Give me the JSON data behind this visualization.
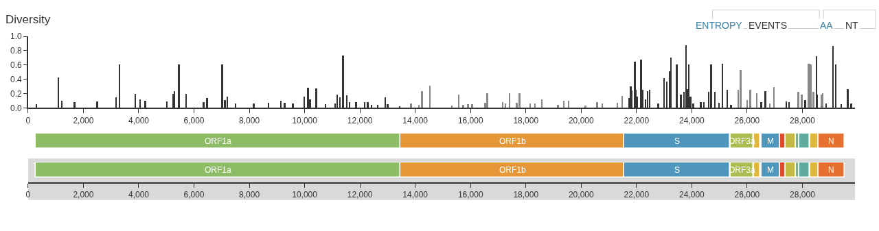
{
  "chart_data": [
    {
      "type": "bar",
      "title": "Diversity",
      "annotations": [
        "ENTROPY",
        "EVENTS",
        "AA",
        "NT"
      ],
      "x": [
        297,
        1097,
        1230,
        1683,
        2500,
        3185,
        3317,
        3878,
        4052,
        4240,
        5025,
        5248,
        5297,
        5454,
        5710,
        6353,
        6477,
        7022,
        7121,
        7203,
        7500,
        8160,
        8696,
        9142,
        9282,
        9579,
        9983,
        10124,
        10198,
        10421,
        10760,
        11106,
        11188,
        11287,
        11394,
        11526,
        11625,
        11864,
        12178,
        12285,
        12426,
        12649,
        12913,
        13003,
        13441,
        13853,
        14134,
        14250,
        14530,
        15330,
        15577,
        15735,
        15908,
        16064,
        16535,
        16609,
        17161,
        17260,
        17409,
        17673,
        17772,
        18160,
        18334,
        18581,
        19166,
        19381,
        19554,
        20156,
        20577,
        20760,
        21312,
        21485,
        21750,
        21799,
        21832,
        21948,
        21980,
        22030,
        22171,
        22220,
        22327,
        22401,
        22483,
        22790,
        22995,
        23102,
        23201,
        23250,
        23458,
        23606,
        23721,
        23795,
        23845,
        23903,
        23960,
        24059,
        24332,
        24447,
        24612,
        24703,
        24844,
        24983,
        25116,
        25290,
        25421,
        25676,
        25767,
        25998,
        26114,
        26361,
        26517,
        26666,
        26824,
        26980,
        27418,
        27525,
        27854,
        27978,
        28102,
        28210,
        28267,
        28324,
        28399,
        28507,
        28547,
        28680,
        28737,
        28861,
        29109,
        29208,
        29406,
        29646,
        29769
      ],
      "values": [
        0.05,
        0.43,
        0.1,
        0.08,
        0.09,
        0.15,
        0.61,
        0.2,
        0.12,
        0.1,
        0.09,
        0.2,
        0.23,
        0.61,
        0.2,
        0.08,
        0.14,
        0.61,
        0.11,
        0.16,
        0.06,
        0.06,
        0.07,
        0.1,
        0.07,
        0.06,
        0.16,
        0.28,
        0.12,
        0.27,
        0.05,
        0.06,
        0.19,
        0.15,
        0.73,
        0.18,
        0.08,
        0.08,
        0.08,
        0.08,
        0.04,
        0.04,
        0.15,
        0.05,
        0.02,
        0.06,
        0.04,
        0.23,
        0.31,
        0.03,
        0.19,
        0.04,
        0.05,
        0.05,
        0.07,
        0.21,
        0.08,
        0.06,
        0.21,
        0.07,
        0.21,
        0.06,
        0.06,
        0.12,
        0.04,
        0.1,
        0.1,
        0.03,
        0.08,
        0.06,
        0.07,
        0.17,
        0.14,
        0.3,
        0.24,
        0.65,
        0.25,
        0.16,
        0.67,
        0.25,
        0.12,
        0.23,
        0.25,
        0.06,
        0.42,
        0.37,
        0.51,
        0.7,
        0.61,
        0.19,
        0.22,
        0.88,
        0.26,
        0.61,
        0.16,
        0.06,
        0.08,
        0.08,
        0.22,
        0.61,
        0.22,
        0.07,
        0.62,
        0.25,
        0.04,
        0.25,
        0.53,
        0.11,
        0.25,
        0.21,
        0.08,
        0.23,
        0.06,
        0.29,
        0.09,
        0.08,
        0.22,
        0.19,
        0.11,
        0.62,
        0.62,
        0.61,
        0.22,
        0.72,
        0.19,
        0.19,
        0.21,
        0.06,
        0.87,
        0.61,
        0.05,
        0.26,
        0.06
      ],
      "colors": [
        "#333333",
        "#333333",
        "#333333",
        "#333333",
        "#333333",
        "#333333",
        "#333333",
        "#333333",
        "#333333",
        "#333333",
        "#333333",
        "#333333",
        "#333333",
        "#333333",
        "#333333",
        "#333333",
        "#333333",
        "#333333",
        "#333333",
        "#333333",
        "#333333",
        "#333333",
        "#333333",
        "#333333",
        "#333333",
        "#333333",
        "#333333",
        "#333333",
        "#333333",
        "#333333",
        "#333333",
        "#333333",
        "#333333",
        "#333333",
        "#333333",
        "#333333",
        "#333333",
        "#333333",
        "#333333",
        "#333333",
        "#333333",
        "#333333",
        "#333333",
        "#333333",
        "#333333",
        "#888888",
        "#888888",
        "#888888",
        "#888888",
        "#888888",
        "#888888",
        "#888888",
        "#888888",
        "#888888",
        "#888888",
        "#888888",
        "#888888",
        "#888888",
        "#888888",
        "#888888",
        "#888888",
        "#888888",
        "#888888",
        "#888888",
        "#888888",
        "#888888",
        "#888888",
        "#888888",
        "#888888",
        "#888888",
        "#888888",
        "#888888",
        "#333333",
        "#333333",
        "#333333",
        "#333333",
        "#333333",
        "#333333",
        "#333333",
        "#333333",
        "#333333",
        "#333333",
        "#333333",
        "#333333",
        "#333333",
        "#333333",
        "#333333",
        "#333333",
        "#333333",
        "#333333",
        "#333333",
        "#333333",
        "#333333",
        "#333333",
        "#333333",
        "#333333",
        "#333333",
        "#333333",
        "#333333",
        "#333333",
        "#333333",
        "#333333",
        "#333333",
        "#333333",
        "#333333",
        "#888888",
        "#888888",
        "#888888",
        "#888888",
        "#888888",
        "#333333",
        "#333333",
        "#888888",
        "#888888",
        "#333333",
        "#333333",
        "#888888",
        "#888888",
        "#333333",
        "#888888",
        "#888888",
        "#888888",
        "#888888",
        "#333333",
        "#333333",
        "#888888",
        "#888888",
        "#333333",
        "#333333",
        "#333333",
        "#333333",
        "#333333",
        "#333333"
      ],
      "xlim": [
        0,
        29903
      ],
      "xticks": [
        {
          "value": 0,
          "label": "0"
        },
        {
          "value": 2000,
          "label": "2,000"
        },
        {
          "value": 4000,
          "label": "4,000"
        },
        {
          "value": 6000,
          "label": "6,000"
        },
        {
          "value": 8000,
          "label": "8,000"
        },
        {
          "value": 10000,
          "label": "10,000"
        },
        {
          "value": 12000,
          "label": "12,000"
        },
        {
          "value": 14000,
          "label": "14,000"
        },
        {
          "value": 16000,
          "label": "16,000"
        },
        {
          "value": 18000,
          "label": "18,000"
        },
        {
          "value": 20000,
          "label": "20,000"
        },
        {
          "value": 22000,
          "label": "22,000"
        },
        {
          "value": 24000,
          "label": "24,000"
        },
        {
          "value": 26000,
          "label": "26,000"
        },
        {
          "value": 28000,
          "label": "28,000"
        }
      ],
      "ylim": [
        0,
        1
      ],
      "yticks": [
        {
          "value": 0,
          "label": "0.0"
        },
        {
          "value": 0.2,
          "label": "0.2"
        },
        {
          "value": 0.4,
          "label": "0.4"
        },
        {
          "value": 0.6,
          "label": "0.6"
        },
        {
          "value": 0.8,
          "label": "0.8"
        },
        {
          "value": 1,
          "label": "1.0"
        }
      ],
      "grid": false
    },
    {
      "type": "bar",
      "orientation": "horizontal",
      "categories": [
        null
      ],
      "xlim": [
        0,
        29903
      ],
      "tick_labels": false,
      "grid": false,
      "series": [
        {
          "color": "#8ebc66",
          "values": [
            13217
          ],
          "base": [
            266
          ],
          "value_labels": [
            "ORF1a"
          ]
        },
        {
          "color": "#e59637",
          "values": [
            8087
          ],
          "base": [
            13468
          ],
          "value_labels": [
            "ORF1b"
          ]
        },
        {
          "color": "#4e96bc",
          "values": [
            3821
          ],
          "base": [
            21563
          ],
          "value_labels": [
            "S"
          ]
        },
        {
          "color": "#aabd52",
          "values": [
            827
          ],
          "base": [
            25393
          ],
          "value_labels": [
            "ORF3a"
          ]
        },
        {
          "color": "#deb73d",
          "values": [
            227
          ],
          "base": [
            26245
          ],
          "value_labels": [
            null
          ]
        },
        {
          "color": "#4e96bc",
          "values": [
            668
          ],
          "base": [
            26523
          ],
          "value_labels": [
            "M"
          ]
        },
        {
          "color": "#e04929",
          "values": [
            185
          ],
          "base": [
            27202
          ],
          "value_labels": [
            null
          ]
        },
        {
          "color": "#c4b945",
          "values": [
            365
          ],
          "base": [
            27394
          ],
          "value_labels": [
            null
          ]
        },
        {
          "color": "#75b681",
          "values": [
            131
          ],
          "base": [
            27756
          ],
          "value_labels": [
            null
          ]
        },
        {
          "color": "#60aa9e",
          "values": [
            365
          ],
          "base": [
            27894
          ],
          "value_labels": [
            null
          ]
        },
        {
          "color": "#deb73d",
          "values": [
            293
          ],
          "base": [
            28284
          ],
          "value_labels": [
            null
          ]
        },
        {
          "color": "#e67030",
          "values": [
            956
          ],
          "base": [
            28577
          ],
          "value_labels": [
            "N"
          ]
        }
      ]
    },
    {
      "type": "bar",
      "orientation": "horizontal",
      "categories": [
        null
      ],
      "xlim": [
        0,
        29903
      ],
      "tick_labels": "x",
      "grid": false,
      "xticks": [
        {
          "value": 0,
          "label": "0"
        },
        {
          "value": 2000,
          "label": "2,000"
        },
        {
          "value": 4000,
          "label": "4,000"
        },
        {
          "value": 6000,
          "label": "6,000"
        },
        {
          "value": 8000,
          "label": "8,000"
        },
        {
          "value": 10000,
          "label": "10,000"
        },
        {
          "value": 12000,
          "label": "12,000"
        },
        {
          "value": 14000,
          "label": "14,000"
        },
        {
          "value": 16000,
          "label": "16,000"
        },
        {
          "value": 18000,
          "label": "18,000"
        },
        {
          "value": 20000,
          "label": "20,000"
        },
        {
          "value": 22000,
          "label": "22,000"
        },
        {
          "value": 24000,
          "label": "24,000"
        },
        {
          "value": 26000,
          "label": "26,000"
        },
        {
          "value": 28000,
          "label": "28,000"
        }
      ],
      "bands": [
        {
          "axis": "x",
          "from": 0,
          "to": 29903,
          "color": "#d9d9d9"
        }
      ],
      "series": [
        {
          "color": "#8ebc66",
          "values": [
            13217
          ],
          "base": [
            266
          ],
          "value_labels": [
            "ORF1a"
          ]
        },
        {
          "color": "#e59637",
          "values": [
            8087
          ],
          "base": [
            13468
          ],
          "value_labels": [
            "ORF1b"
          ]
        },
        {
          "color": "#4e96bc",
          "values": [
            3821
          ],
          "base": [
            21563
          ],
          "value_labels": [
            "S"
          ]
        },
        {
          "color": "#aabd52",
          "values": [
            827
          ],
          "base": [
            25393
          ],
          "value_labels": [
            "ORF3a"
          ]
        },
        {
          "color": "#deb73d",
          "values": [
            227
          ],
          "base": [
            26245
          ],
          "value_labels": [
            null
          ]
        },
        {
          "color": "#4e96bc",
          "values": [
            668
          ],
          "base": [
            26523
          ],
          "value_labels": [
            "M"
          ]
        },
        {
          "color": "#e04929",
          "values": [
            185
          ],
          "base": [
            27202
          ],
          "value_labels": [
            null
          ]
        },
        {
          "color": "#c4b945",
          "values": [
            365
          ],
          "base": [
            27394
          ],
          "value_labels": [
            null
          ]
        },
        {
          "color": "#75b681",
          "values": [
            131
          ],
          "base": [
            27756
          ],
          "value_labels": [
            null
          ]
        },
        {
          "color": "#60aa9e",
          "values": [
            365
          ],
          "base": [
            27894
          ],
          "value_labels": [
            null
          ]
        },
        {
          "color": "#deb73d",
          "values": [
            293
          ],
          "base": [
            28284
          ],
          "value_labels": [
            null
          ]
        },
        {
          "color": "#e67030",
          "values": [
            956
          ],
          "base": [
            28577
          ],
          "value_labels": [
            "N"
          ]
        }
      ]
    }
  ]
}
